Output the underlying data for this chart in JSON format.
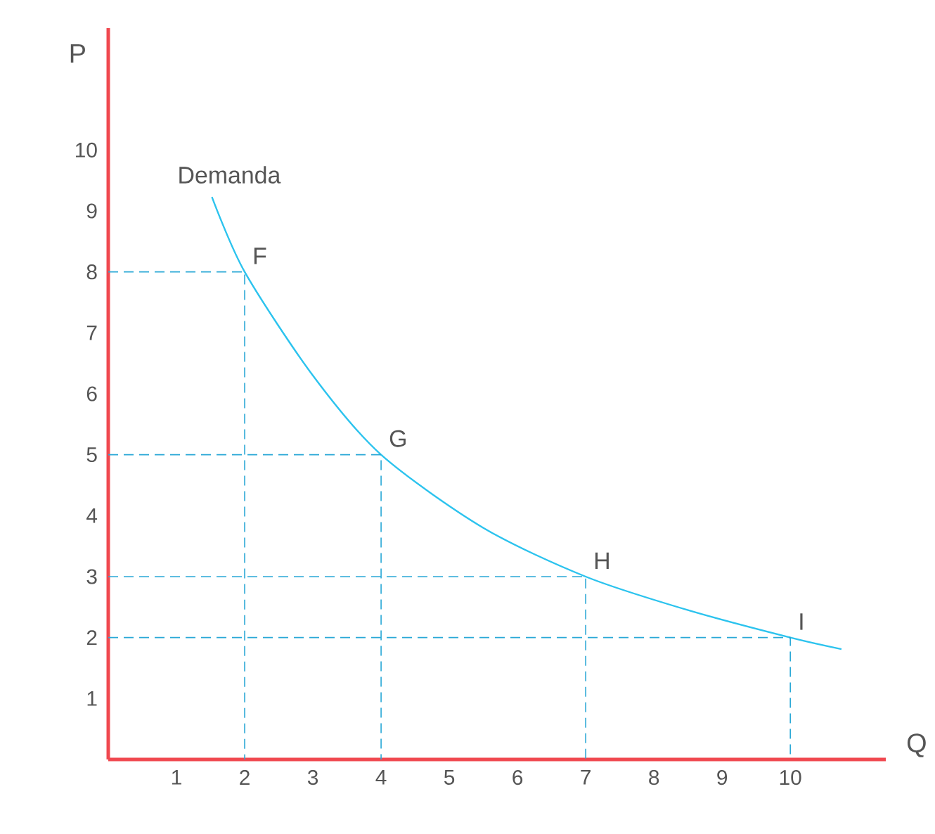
{
  "chart_data": {
    "type": "line",
    "xlabel": "Q",
    "ylabel": "P",
    "xlim": [
      0,
      11.4
    ],
    "ylim": [
      0,
      12
    ],
    "xticks": [
      1,
      2,
      3,
      4,
      5,
      6,
      7,
      8,
      9,
      10
    ],
    "yticks": [
      1,
      2,
      3,
      4,
      5,
      6,
      7,
      8,
      9,
      10
    ],
    "marker": "none",
    "grid": false,
    "series": [
      {
        "name": "Demanda",
        "color": "#2cc3ee",
        "x": [
          1.52,
          2,
          3,
          4,
          5.5,
          7,
          8.5,
          10,
          10.75
        ],
        "values": [
          9.23,
          8,
          6.3,
          5,
          3.8,
          3,
          2.45,
          2,
          1.81
        ]
      },
      {
        "color": "#2aa8d6",
        "line_style": "dashed",
        "x": [
          0,
          2,
          2
        ],
        "values": [
          8,
          8,
          0
        ]
      },
      {
        "color": "#2aa8d6",
        "line_style": "dashed",
        "x": [
          0,
          4,
          4
        ],
        "values": [
          5,
          5,
          0
        ]
      },
      {
        "color": "#2aa8d6",
        "line_style": "dashed",
        "x": [
          0,
          7,
          7
        ],
        "values": [
          3,
          3,
          0
        ]
      },
      {
        "color": "#2aa8d6",
        "line_style": "dashed",
        "x": [
          0,
          10,
          10
        ],
        "values": [
          2,
          2,
          0
        ]
      }
    ],
    "annotations": [
      {
        "text": "F",
        "x": 2,
        "y": 8
      },
      {
        "text": "G",
        "x": 4,
        "y": 5
      },
      {
        "text": "H",
        "x": 7,
        "y": 3
      },
      {
        "text": "I",
        "x": 10,
        "y": 2
      }
    ]
  }
}
